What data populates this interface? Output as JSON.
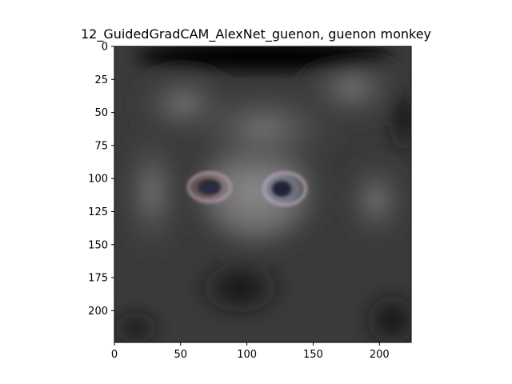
{
  "title": "12_GuidedGradCAM_AlexNet_guenon, guenon monkey",
  "image": {
    "description_icon": "guided-gradcam-heatmap",
    "dominant_colors": [
      "#000000",
      "#3a3a3a",
      "#6e6e6e",
      "#a0a0a0"
    ],
    "extent": [
      0,
      224
    ]
  },
  "axes": {
    "y_ticks": [
      "0",
      "25",
      "50",
      "75",
      "100",
      "125",
      "150",
      "175",
      "200"
    ],
    "x_ticks": [
      "0",
      "50",
      "100",
      "150",
      "200"
    ],
    "y_values": [
      0,
      25,
      50,
      75,
      100,
      125,
      150,
      175,
      200
    ],
    "x_values": [
      0,
      50,
      100,
      150,
      200
    ]
  }
}
